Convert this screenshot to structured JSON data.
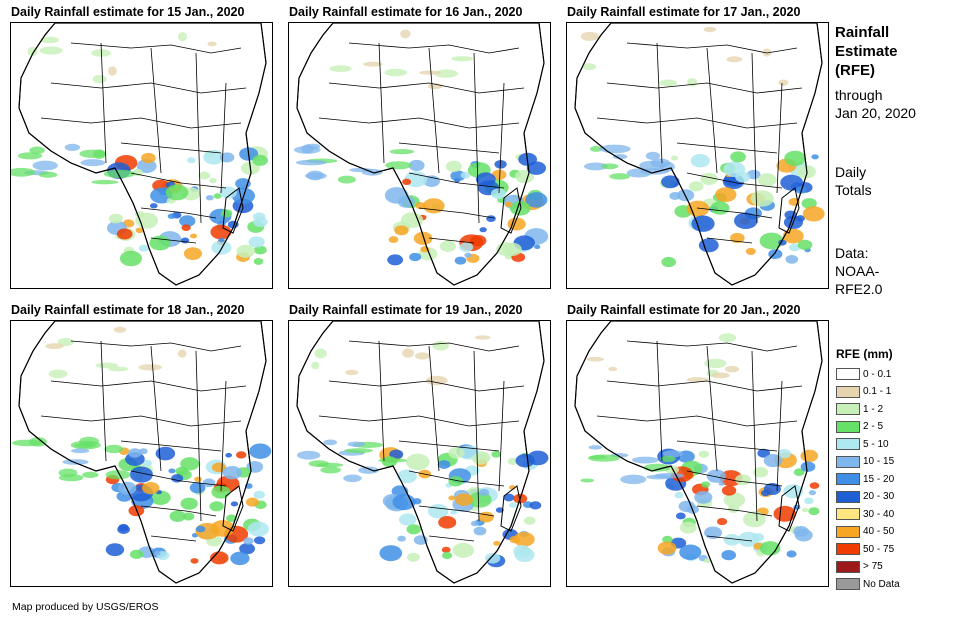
{
  "panels": [
    {
      "title": "Daily Rainfall estimate for 15 Jan., 2020",
      "intensity": 1.0
    },
    {
      "title": "Daily Rainfall estimate for 16 Jan., 2020",
      "intensity": 0.9
    },
    {
      "title": "Daily Rainfall estimate for 17 Jan., 2020",
      "intensity": 0.85
    },
    {
      "title": "Daily Rainfall estimate for 18 Jan., 2020",
      "intensity": 1.1
    },
    {
      "title": "Daily Rainfall estimate for 19 Jan., 2020",
      "intensity": 1.05
    },
    {
      "title": "Daily Rainfall estimate for 20 Jan., 2020",
      "intensity": 1.0
    }
  ],
  "side": {
    "title_line1": "Rainfall",
    "title_line2": "Estimate",
    "title_line3": "(RFE)",
    "through_line1": "through",
    "through_line2": "Jan 20, 2020",
    "daily_line1": "Daily",
    "daily_line2": "Totals",
    "data_line1": "Data:",
    "data_line2": "NOAA-",
    "data_line3": "RFE2.0"
  },
  "legend": {
    "title": "RFE (mm)",
    "items": [
      {
        "label": "0 - 0.1",
        "color": "#ffffff"
      },
      {
        "label": "0.1 - 1",
        "color": "#e6d5b0"
      },
      {
        "label": "1 - 2",
        "color": "#c7f0b8"
      },
      {
        "label": "2 - 5",
        "color": "#66e066"
      },
      {
        "label": "5 - 10",
        "color": "#aee8f0"
      },
      {
        "label": "10 - 15",
        "color": "#7fb6ec"
      },
      {
        "label": "15 - 20",
        "color": "#3f8fe6"
      },
      {
        "label": "20 - 30",
        "color": "#1f5fd6"
      },
      {
        "label": "30 - 40",
        "color": "#ffe680"
      },
      {
        "label": "40 - 50",
        "color": "#f6a623"
      },
      {
        "label": "50 - 75",
        "color": "#f03c00"
      },
      {
        "label": "> 75",
        "color": "#9e1a1a"
      },
      {
        "label": "No Data",
        "color": "#999999"
      }
    ]
  },
  "credit": "Map produced by USGS/EROS"
}
